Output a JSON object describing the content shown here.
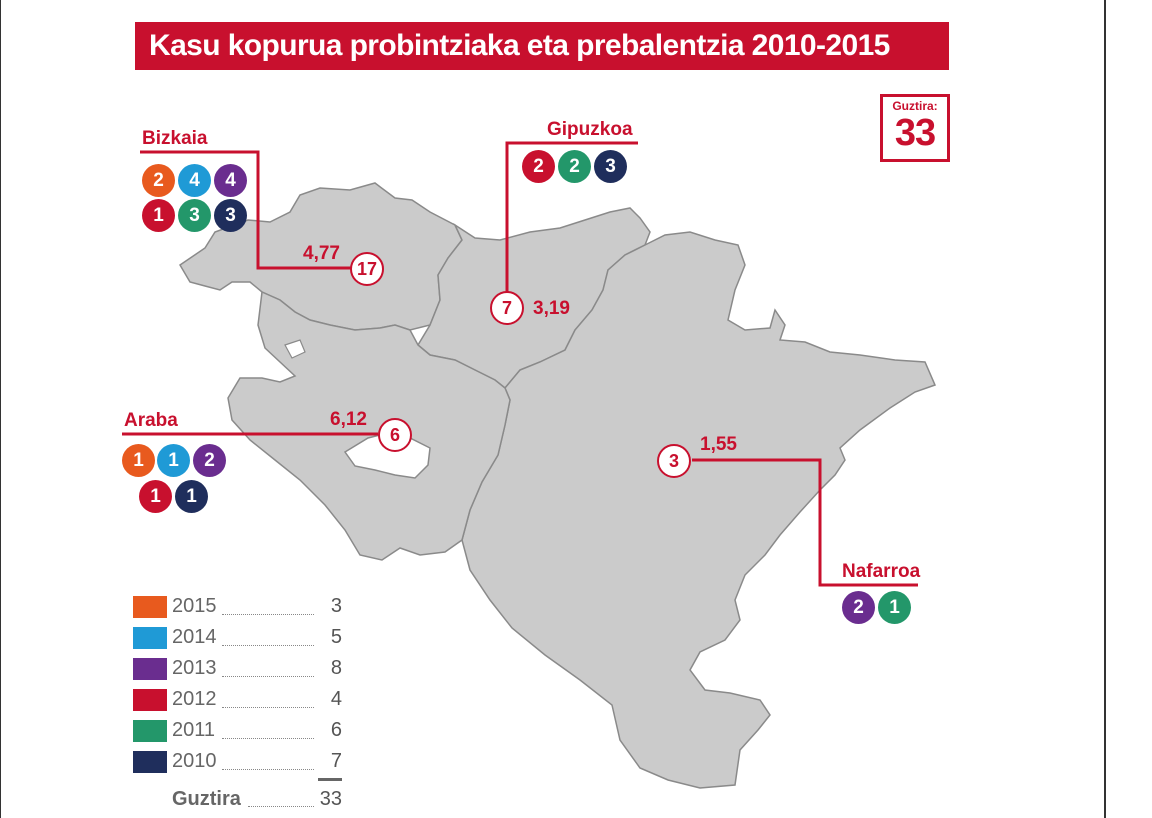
{
  "title": "Kasu kopurua probintziaka eta prebalentzia 2010-2015",
  "total": {
    "label": "Guztira:",
    "value": "33"
  },
  "colors": {
    "accent": "#c8102e",
    "2015": "#e85a1e",
    "2014": "#1f9ad6",
    "2013": "#6a2d8f",
    "2012": "#c8102e",
    "2011": "#23976a",
    "2010": "#1f2e5c",
    "map_fill": "#cbcbcb",
    "map_stroke": "#8a8a8a"
  },
  "provinces": {
    "bizkaia": {
      "name": "Bizkaia",
      "cases": "17",
      "prevalence": "4,77",
      "breakdown": [
        {
          "year": "2015",
          "count": "2"
        },
        {
          "year": "2014",
          "count": "4"
        },
        {
          "year": "2013",
          "count": "4"
        },
        {
          "year": "2012",
          "count": "1"
        },
        {
          "year": "2011",
          "count": "3"
        },
        {
          "year": "2010",
          "count": "3"
        }
      ]
    },
    "gipuzkoa": {
      "name": "Gipuzkoa",
      "cases": "7",
      "prevalence": "3,19",
      "breakdown": [
        {
          "year": "2012",
          "count": "2"
        },
        {
          "year": "2011",
          "count": "2"
        },
        {
          "year": "2010",
          "count": "3"
        }
      ]
    },
    "araba": {
      "name": "Araba",
      "cases": "6",
      "prevalence": "6,12",
      "breakdown": [
        {
          "year": "2015",
          "count": "1"
        },
        {
          "year": "2014",
          "count": "1"
        },
        {
          "year": "2013",
          "count": "2"
        },
        {
          "year": "2012",
          "count": "1"
        },
        {
          "year": "2010",
          "count": "1"
        }
      ]
    },
    "nafarroa": {
      "name": "Nafarroa",
      "cases": "3",
      "prevalence": "1,55",
      "breakdown": [
        {
          "year": "2013",
          "count": "2"
        },
        {
          "year": "2011",
          "count": "1"
        }
      ]
    }
  },
  "legend": {
    "rows": [
      {
        "year": "2015",
        "count": "3"
      },
      {
        "year": "2014",
        "count": "5"
      },
      {
        "year": "2013",
        "count": "8"
      },
      {
        "year": "2012",
        "count": "4"
      },
      {
        "year": "2011",
        "count": "6"
      },
      {
        "year": "2010",
        "count": "7"
      }
    ],
    "total_label": "Guztira",
    "total_value": "33"
  }
}
